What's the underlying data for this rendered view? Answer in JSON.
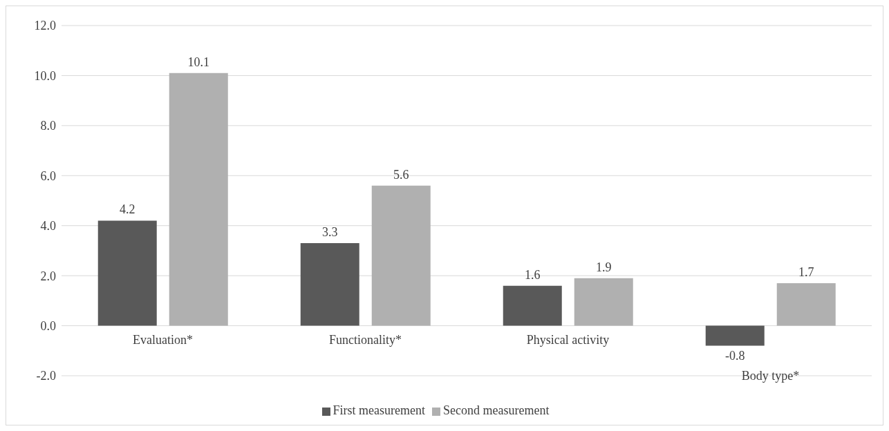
{
  "chart_data": {
    "type": "bar",
    "categories": [
      "Evaluation*",
      "Functionality*",
      "Physical activity",
      "Body type*"
    ],
    "series": [
      {
        "name": "First measurement",
        "color": "#595959",
        "values": [
          4.2,
          3.3,
          1.6,
          -0.8
        ]
      },
      {
        "name": "Second measurement",
        "color": "#b0b0b0",
        "values": [
          10.1,
          5.6,
          1.9,
          1.7
        ]
      }
    ],
    "ylim": [
      -2,
      12
    ],
    "yticks": [
      {
        "value": -2,
        "label": "-2.0"
      },
      {
        "value": 0,
        "label": "0.0"
      },
      {
        "value": 2,
        "label": "2.0"
      },
      {
        "value": 4,
        "label": "4.0"
      },
      {
        "value": 6,
        "label": "6.0"
      },
      {
        "value": 8,
        "label": "8.0"
      },
      {
        "value": 10,
        "label": "10.0"
      },
      {
        "value": 12,
        "label": "12.0"
      }
    ],
    "grid": "y",
    "legend": "bottom",
    "data_labels": true
  }
}
